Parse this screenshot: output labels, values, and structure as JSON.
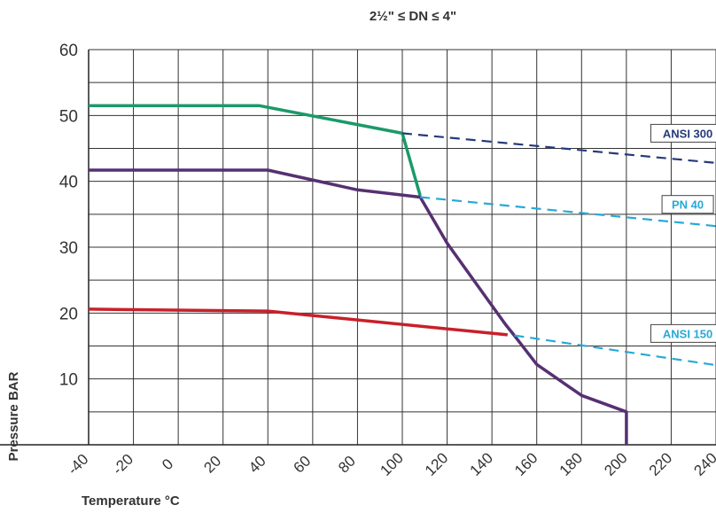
{
  "chart_data": {
    "type": "line",
    "title": "2½\" ≤ DN ≤ 4\"",
    "xlabel": "Temperature °C",
    "ylabel": "Pressure BAR",
    "xlim": [
      -40,
      240
    ],
    "ylim": [
      0,
      60
    ],
    "x_ticks": [
      "-40",
      "-20",
      "0",
      "20",
      "40",
      "60",
      "80",
      "100",
      "120",
      "140",
      "160",
      "180",
      "200",
      "220",
      "240"
    ],
    "y_ticks": [
      "60",
      "50",
      "40",
      "30",
      "20",
      "10"
    ],
    "grid": true,
    "series": [
      {
        "color": "#1a9a6a",
        "dash": false,
        "points": [
          [
            -40,
            51.5
          ],
          [
            36,
            51.5
          ],
          [
            100,
            47.3
          ],
          [
            108,
            37.8
          ]
        ]
      },
      {
        "color": "#563072",
        "dash": false,
        "points": [
          [
            -40,
            41.7
          ],
          [
            40,
            41.7
          ],
          [
            80,
            38.7
          ],
          [
            108,
            37.6
          ],
          [
            120,
            30.6
          ],
          [
            146,
            18.3
          ],
          [
            150,
            16.6
          ],
          [
            160,
            12.2
          ],
          [
            180,
            7.5
          ],
          [
            200,
            5.0
          ],
          [
            200,
            0
          ]
        ]
      },
      {
        "color": "#c8202a",
        "dash": false,
        "points": [
          [
            -40,
            20.6
          ],
          [
            40,
            20.3
          ],
          [
            147,
            16.7
          ]
        ]
      },
      {
        "name": "ANSI 300",
        "color": "#253a7a",
        "dash": true,
        "points": [
          [
            100,
            47.3
          ],
          [
            240,
            42.8
          ]
        ]
      },
      {
        "name": "PN 40",
        "color": "#27a9d6",
        "dash": true,
        "points": [
          [
            108,
            37.6
          ],
          [
            240,
            33.2
          ]
        ]
      },
      {
        "name": "ANSI 150",
        "color": "#27a9d6",
        "dash": true,
        "points": [
          [
            150,
            16.6
          ],
          [
            240,
            12.1
          ]
        ]
      }
    ],
    "labels": [
      {
        "text": "ANSI 300",
        "x": 225,
        "y": 47.3,
        "color": "#253a7a"
      },
      {
        "text": "PN 40",
        "x": 225,
        "y": 36.5,
        "color": "#27a9d6"
      },
      {
        "text": "ANSI 150",
        "x": 225,
        "y": 16.9,
        "color": "#27a9d6"
      }
    ]
  }
}
